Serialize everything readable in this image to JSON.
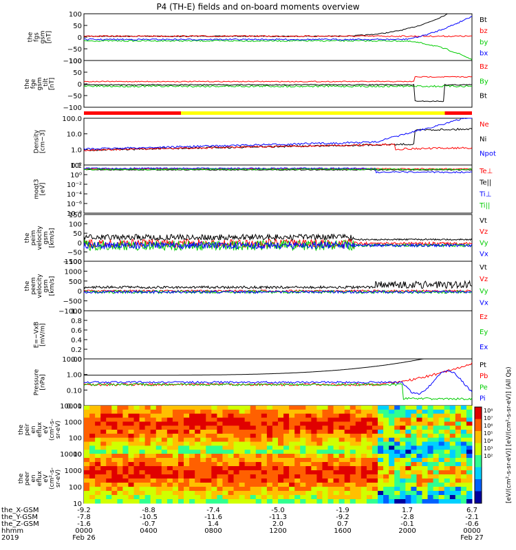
{
  "title": "P4 (TH-E) fields and on-board moments overview",
  "colors": {
    "black": "#000000",
    "red": "#ff0000",
    "green": "#00cc00",
    "blue": "#0000ff",
    "mode_red": "#ff0000",
    "mode_yellow": "#ffff00"
  },
  "chart_data": {
    "type": "line",
    "panels": [
      {
        "ylabel": [
          "the",
          "fgs",
          "gsm",
          "[nT]"
        ],
        "ticks": [
          "100",
          "50",
          "0",
          "−50",
          "−100"
        ],
        "legend": [
          {
            "text": "Bt",
            "color": "#000000"
          },
          {
            "text": "bz",
            "color": "#ff0000"
          },
          {
            "text": "by",
            "color": "#00cc00"
          },
          {
            "text": "bx",
            "color": "#0000ff"
          }
        ]
      },
      {
        "ylabel": [
          "the",
          "fge",
          "gsm",
          "_tilt",
          "[nT]"
        ],
        "ticks": [
          "100",
          "50",
          "0",
          "−50",
          "−100"
        ],
        "legend": [
          {
            "text": "Bz",
            "color": "#ff0000"
          },
          {
            "text": "By",
            "color": "#00cc00"
          },
          {
            "text": "Bt",
            "color": "#000000"
          }
        ]
      },
      {
        "ylabel": [
          "Density",
          "[cm−3]"
        ],
        "ticks": [
          "100.0",
          "10.0",
          "1.0",
          "0.1"
        ],
        "legend": [
          {
            "text": "Ne",
            "color": "#ff0000"
          },
          {
            "text": "Ni",
            "color": "#000000"
          },
          {
            "text": "Npot",
            "color": "#0000ff"
          }
        ]
      },
      {
        "ylabel": [
          "moqt3",
          "[eV]"
        ],
        "ticks": [
          "10²",
          "10⁰",
          "10⁻²",
          "10⁻⁴",
          "10⁻⁶",
          "10⁻⁸"
        ],
        "legend": [
          {
            "text": "Te⊥",
            "color": "#ff0000"
          },
          {
            "text": "Te||",
            "color": "#000000"
          },
          {
            "text": "Ti⊥",
            "color": "#0000ff"
          },
          {
            "text": "Ti||",
            "color": "#00cc00"
          }
        ]
      },
      {
        "ylabel": [
          "the",
          "peim",
          "velocity",
          "gsm",
          "[km/s]"
        ],
        "ticks": [
          "150",
          "100",
          "50",
          "0",
          "−50",
          "−100"
        ],
        "legend": [
          {
            "text": "Vt",
            "color": "#000000"
          },
          {
            "text": "Vz",
            "color": "#ff0000"
          },
          {
            "text": "Vy",
            "color": "#00cc00"
          },
          {
            "text": "Vx",
            "color": "#0000ff"
          }
        ]
      },
      {
        "ylabel": [
          "the",
          "peem",
          "velocity",
          "gsm",
          "[km/s]"
        ],
        "ticks": [
          "1500",
          "1000",
          "500",
          "0",
          "−500",
          "−1000"
        ],
        "legend": [
          {
            "text": "Vt",
            "color": "#000000"
          },
          {
            "text": "Vz",
            "color": "#ff0000"
          },
          {
            "text": "Vy",
            "color": "#00cc00"
          },
          {
            "text": "Vx",
            "color": "#0000ff"
          }
        ]
      },
      {
        "ylabel": [
          "E=−VxB",
          "[mV/m]"
        ],
        "ticks": [
          "1.0",
          "0.8",
          "0.6",
          "0.4",
          "0.2",
          "0.0"
        ],
        "legend": [
          {
            "text": "Ez",
            "color": "#ff0000"
          },
          {
            "text": "Ey",
            "color": "#00cc00"
          },
          {
            "text": "Ex",
            "color": "#0000ff"
          }
        ]
      },
      {
        "ylabel": [
          "Pressure",
          "[nPa]"
        ],
        "ticks": [
          "10.00",
          "1.00",
          "0.10",
          "0.01"
        ],
        "legend": [
          {
            "text": "Pt",
            "color": "#000000"
          },
          {
            "text": "Pb",
            "color": "#ff0000"
          },
          {
            "text": "Pe",
            "color": "#00cc00"
          },
          {
            "text": "Pi",
            "color": "#0000ff"
          }
        ]
      },
      {
        "ylabel": [
          "the",
          "peir",
          "en",
          "eflux",
          "eV",
          "(cm²-s-",
          "sr-eV)"
        ],
        "ticks": [
          "10000",
          "1000",
          "100",
          "10"
        ],
        "colorbar_ticks": [
          "10⁸",
          "10⁷",
          "10⁶",
          "10⁵",
          "10⁴",
          "10³",
          "10²"
        ]
      },
      {
        "ylabel": [
          "the",
          "peer",
          "en",
          "eflux",
          "eV",
          "(cm²-s-",
          "sr-eV)"
        ],
        "ticks": [
          "10000",
          "1000",
          "100",
          "10"
        ],
        "colorbar_ticks": [
          "10⁸",
          "10⁷",
          "10⁶",
          "10⁵",
          "10⁴",
          "10³",
          "10²"
        ]
      }
    ],
    "colorbar_label": "[eV/(cm²-s-sr-eV)] [eV/(cm²-s-sr-eV)] (All Qs)",
    "x_rows": [
      {
        "label": "the_X-GSM",
        "values": [
          "-9.2",
          "-8.8",
          "-7.4",
          "-5.0",
          "-1.9",
          "1.7",
          "6.7"
        ]
      },
      {
        "label": "the_Y-GSM",
        "values": [
          "-7.8",
          "-10.5",
          "-11.6",
          "-11.3",
          "-9.2",
          "-2.8",
          "-2.1"
        ]
      },
      {
        "label": "the_Z-GSM",
        "values": [
          "-1.6",
          "-0.7",
          "1.4",
          "2.0",
          "0.7",
          "-0.1",
          "-0.6"
        ]
      },
      {
        "label": "hhmm",
        "values": [
          "0000",
          "0400",
          "0800",
          "1200",
          "1600",
          "2000",
          "0000"
        ]
      },
      {
        "label": "2019",
        "values": [
          "Feb 26",
          "",
          "",
          "",
          "",
          "",
          "Feb 27"
        ]
      }
    ]
  }
}
